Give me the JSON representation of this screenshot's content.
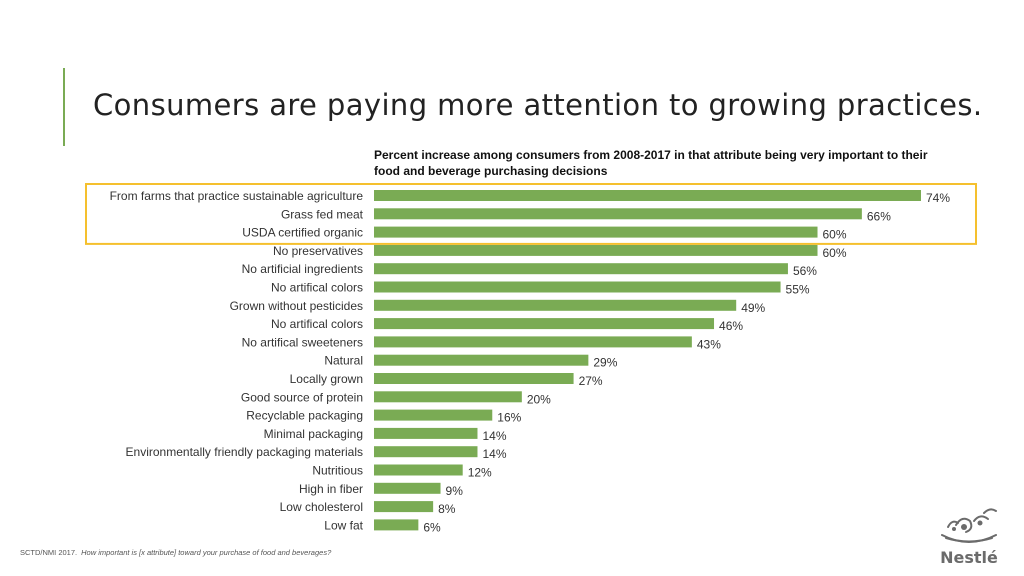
{
  "slide": {
    "title": "Consumers are paying more attention to growing practices.",
    "accent_color": "#7aab54"
  },
  "footnote": {
    "source": "SCTD/NMI 2017.",
    "question": "How important is [x attribute] toward your purchase of food and beverages?"
  },
  "logo": {
    "word": "Nestlé",
    "icon": "nest-birds-icon"
  },
  "chart_data": {
    "type": "bar",
    "orientation": "horizontal",
    "title": "Percent increase among consumers from 2008-2017 in that attribute being very important to their food and beverage purchasing decisions",
    "categories": [
      "From farms that practice sustainable agriculture",
      "Grass fed meat",
      "USDA certified organic",
      "No preservatives",
      "No artificial ingredients",
      "No artifical colors",
      "Grown without pesticides",
      "No artifical colors",
      "No artifical sweeteners",
      "Natural",
      "Locally grown",
      "Good source of protein",
      "Recyclable packaging",
      "Minimal packaging",
      "Environmentally friendly packaging materials",
      "Nutritious",
      "High in fiber",
      "Low cholesterol",
      "Low fat"
    ],
    "values": [
      74,
      66,
      60,
      60,
      56,
      55,
      49,
      46,
      43,
      29,
      27,
      20,
      16,
      14,
      14,
      12,
      9,
      8,
      6
    ],
    "value_labels": [
      "74%",
      "66%",
      "60%",
      "60%",
      "56%",
      "55%",
      "49%",
      "46%",
      "43%",
      "29%",
      "27%",
      "20%",
      "16%",
      "14%",
      "14%",
      "12%",
      "9%",
      "8%",
      "6%"
    ],
    "xlim": [
      0,
      74
    ],
    "bar_color": "#7aab54",
    "highlight_color": "#f5c02e",
    "highlight_rows": [
      0,
      1,
      2
    ],
    "grid": false,
    "legend": "none"
  }
}
